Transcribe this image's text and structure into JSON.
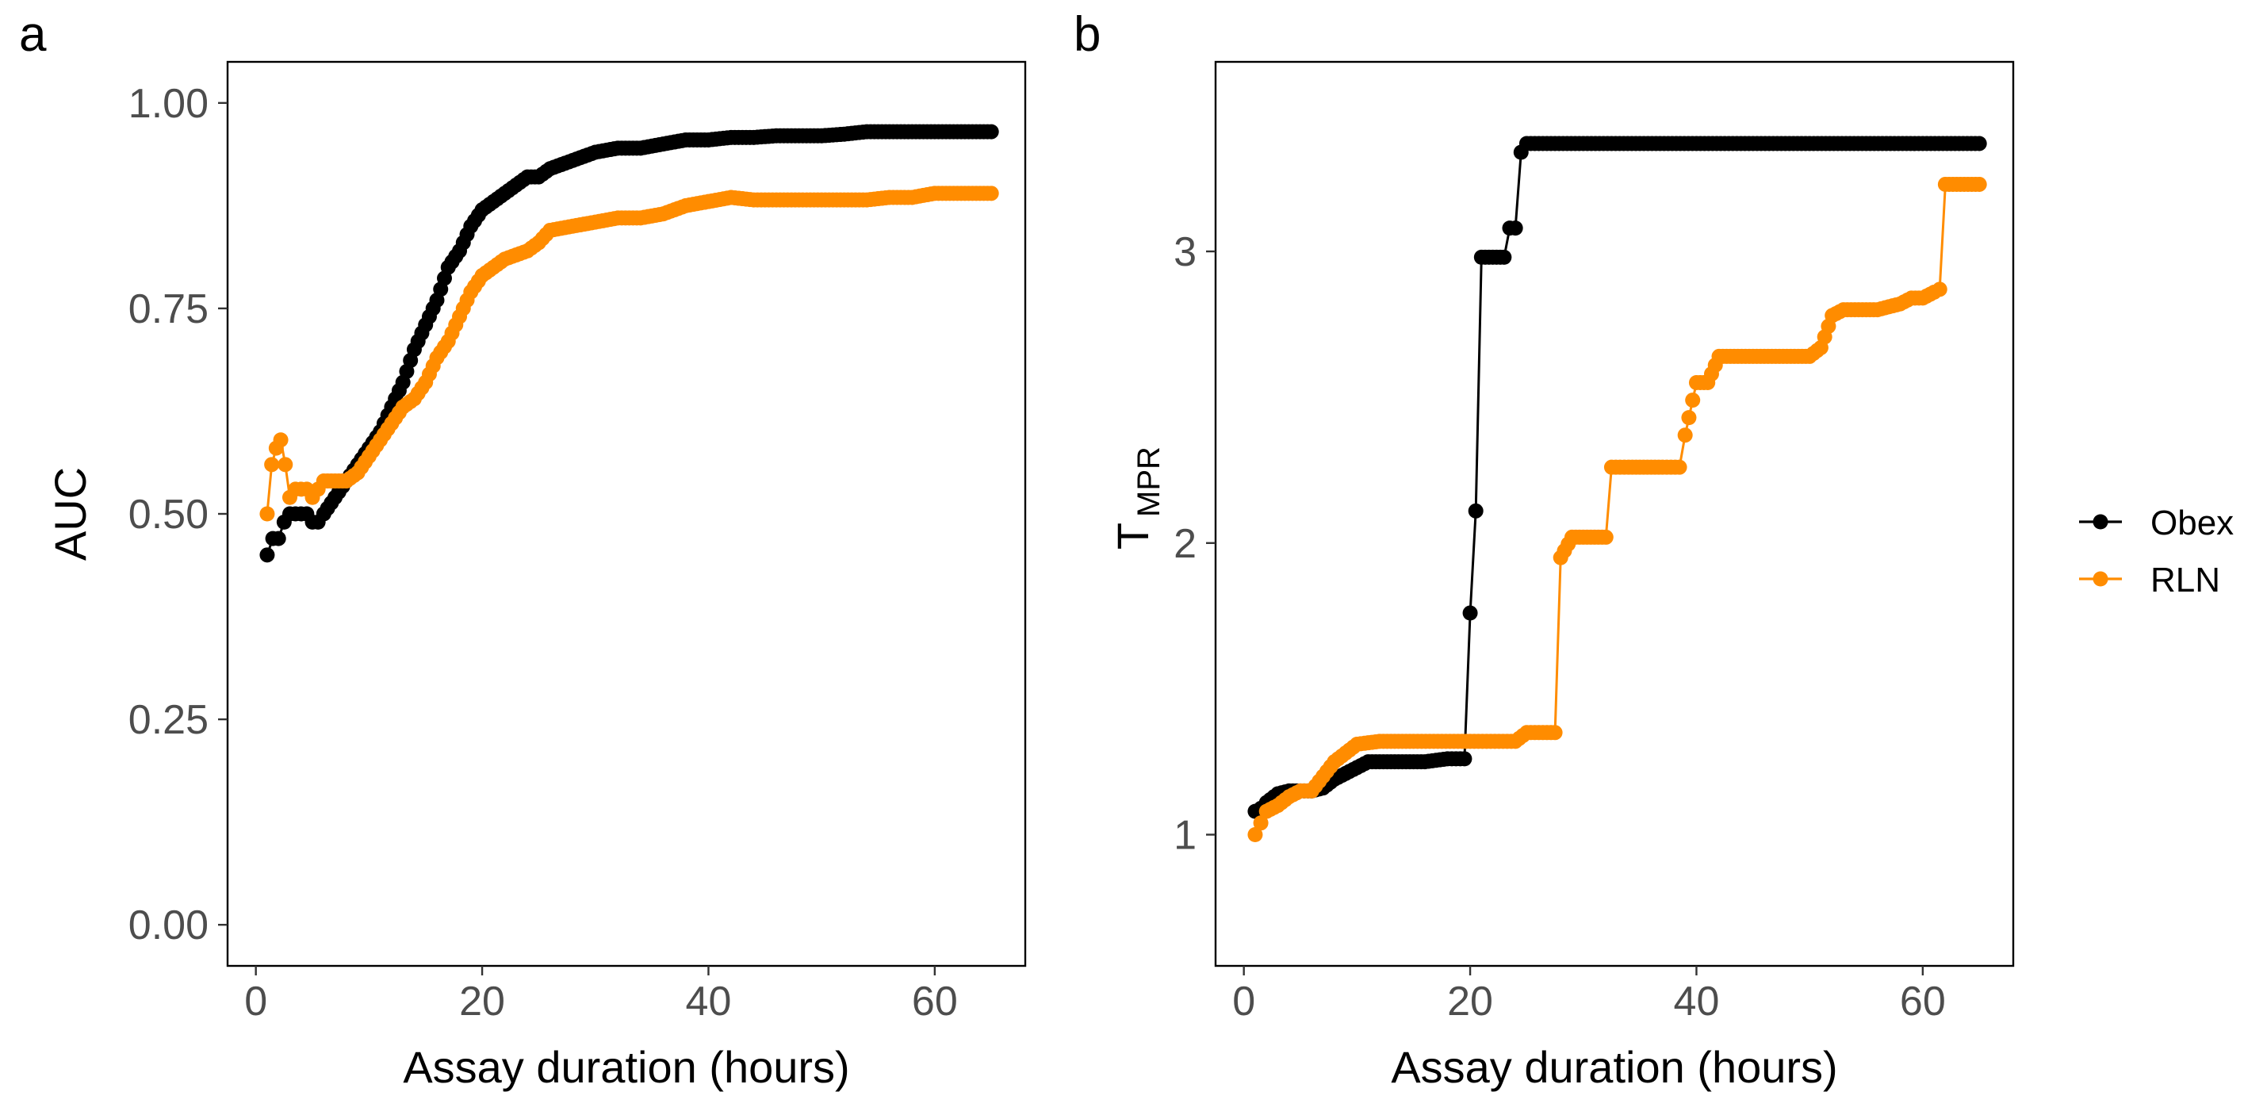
{
  "panels": {
    "a": {
      "letter": "a"
    },
    "b": {
      "letter": "b"
    }
  },
  "legend": {
    "items": [
      {
        "label": "Obex",
        "color": "#000000"
      },
      {
        "label": "RLN",
        "color": "#ff8c00"
      }
    ]
  },
  "chart_data": [
    {
      "type": "line",
      "panel": "a",
      "xlabel": "Assay duration (hours)",
      "ylabel": "AUC",
      "xlim": [
        -2.5,
        68
      ],
      "ylim": [
        -0.05,
        1.05
      ],
      "xticks": [
        0,
        20,
        40,
        60
      ],
      "xtick_labels": [
        "0",
        "20",
        "40",
        "60"
      ],
      "yticks": [
        0,
        0.25,
        0.5,
        0.75,
        1
      ],
      "ytick_labels": [
        "0.00",
        "0.25",
        "0.50",
        "0.75",
        "1.00"
      ],
      "grid": false,
      "markers": true,
      "series": [
        {
          "name": "Obex",
          "color": "#000000",
          "x": [
            1,
            1.5,
            2,
            2.5,
            3,
            3.5,
            4,
            4.5,
            5,
            5.5,
            6,
            7,
            8,
            9,
            10,
            11,
            12,
            13,
            14,
            15,
            16,
            17,
            18,
            19,
            20,
            21,
            22,
            23,
            24,
            25,
            26,
            27,
            28,
            29,
            30,
            32,
            34,
            36,
            38,
            40,
            42,
            44,
            46,
            48,
            50,
            52,
            54,
            56,
            58,
            60,
            62,
            64,
            65
          ],
          "y": [
            0.45,
            0.47,
            0.47,
            0.49,
            0.5,
            0.5,
            0.5,
            0.5,
            0.49,
            0.49,
            0.5,
            0.52,
            0.54,
            0.56,
            0.58,
            0.6,
            0.63,
            0.66,
            0.7,
            0.73,
            0.76,
            0.8,
            0.82,
            0.85,
            0.87,
            0.88,
            0.89,
            0.9,
            0.91,
            0.91,
            0.92,
            0.925,
            0.93,
            0.935,
            0.94,
            0.945,
            0.945,
            0.95,
            0.955,
            0.955,
            0.958,
            0.958,
            0.96,
            0.96,
            0.96,
            0.962,
            0.965,
            0.965,
            0.965,
            0.965,
            0.965,
            0.965,
            0.965
          ]
        },
        {
          "name": "RLN",
          "color": "#ff8c00",
          "x": [
            1,
            1.4,
            1.8,
            2.2,
            2.6,
            3,
            3.5,
            4,
            4.5,
            5,
            5.5,
            6,
            7,
            8,
            9,
            10,
            11,
            12,
            13,
            14,
            15,
            16,
            17,
            18,
            19,
            20,
            21,
            22,
            23,
            24,
            25,
            26,
            28,
            30,
            32,
            34,
            36,
            38,
            40,
            42,
            44,
            46,
            48,
            50,
            52,
            54,
            56,
            58,
            60,
            62,
            64,
            65
          ],
          "y": [
            0.5,
            0.56,
            0.58,
            0.59,
            0.56,
            0.52,
            0.53,
            0.53,
            0.53,
            0.52,
            0.53,
            0.54,
            0.54,
            0.54,
            0.55,
            0.57,
            0.59,
            0.61,
            0.63,
            0.64,
            0.66,
            0.69,
            0.71,
            0.74,
            0.77,
            0.79,
            0.8,
            0.81,
            0.815,
            0.82,
            0.83,
            0.845,
            0.85,
            0.855,
            0.86,
            0.86,
            0.865,
            0.875,
            0.88,
            0.885,
            0.882,
            0.882,
            0.882,
            0.882,
            0.882,
            0.882,
            0.885,
            0.885,
            0.89,
            0.89,
            0.89,
            0.89
          ]
        }
      ]
    },
    {
      "type": "line",
      "panel": "b",
      "xlabel": "Assay duration (hours)",
      "ylabel": "T",
      "ylabel_subscript": "MPR",
      "xlim": [
        -2.5,
        68
      ],
      "ylim": [
        0.55,
        3.65
      ],
      "xticks": [
        0,
        20,
        40,
        60
      ],
      "xtick_labels": [
        "0",
        "20",
        "40",
        "60"
      ],
      "yticks": [
        1,
        2,
        3
      ],
      "ytick_labels": [
        "1",
        "2",
        "3"
      ],
      "grid": false,
      "markers": true,
      "series": [
        {
          "name": "Obex",
          "color": "#000000",
          "x": [
            1,
            1.5,
            2,
            3,
            4,
            5,
            6,
            7,
            8,
            9,
            10,
            11,
            12,
            14,
            16,
            18,
            19.5,
            20,
            20.5,
            21,
            22,
            23,
            23.5,
            24,
            24.5,
            25,
            30,
            35,
            40,
            45,
            50,
            55,
            60,
            65
          ],
          "y": [
            1.08,
            1.09,
            1.11,
            1.14,
            1.15,
            1.15,
            1.15,
            1.16,
            1.19,
            1.21,
            1.23,
            1.25,
            1.25,
            1.25,
            1.25,
            1.26,
            1.26,
            1.76,
            2.11,
            2.98,
            2.98,
            2.98,
            3.08,
            3.08,
            3.34,
            3.37,
            3.37,
            3.37,
            3.37,
            3.37,
            3.37,
            3.37,
            3.37,
            3.37
          ]
        },
        {
          "name": "RLN",
          "color": "#ff8c00",
          "x": [
            1,
            1.5,
            2,
            3,
            4,
            5,
            6,
            7,
            8,
            9,
            10,
            12,
            15,
            20,
            24,
            25,
            27.5,
            28,
            29,
            31,
            32,
            32.5,
            34,
            37,
            38.5,
            39,
            40,
            41,
            42,
            45,
            48,
            50,
            51,
            52,
            53,
            56,
            58,
            59,
            60,
            61,
            61.5,
            62,
            63,
            64,
            65
          ],
          "y": [
            1.0,
            1.04,
            1.08,
            1.1,
            1.13,
            1.15,
            1.15,
            1.2,
            1.25,
            1.28,
            1.31,
            1.32,
            1.32,
            1.32,
            1.32,
            1.35,
            1.35,
            1.95,
            2.02,
            2.02,
            2.02,
            2.26,
            2.26,
            2.26,
            2.26,
            2.37,
            2.55,
            2.55,
            2.64,
            2.64,
            2.64,
            2.64,
            2.67,
            2.78,
            2.8,
            2.8,
            2.82,
            2.84,
            2.84,
            2.86,
            2.87,
            3.23,
            3.23,
            3.23,
            3.23
          ]
        }
      ]
    }
  ]
}
